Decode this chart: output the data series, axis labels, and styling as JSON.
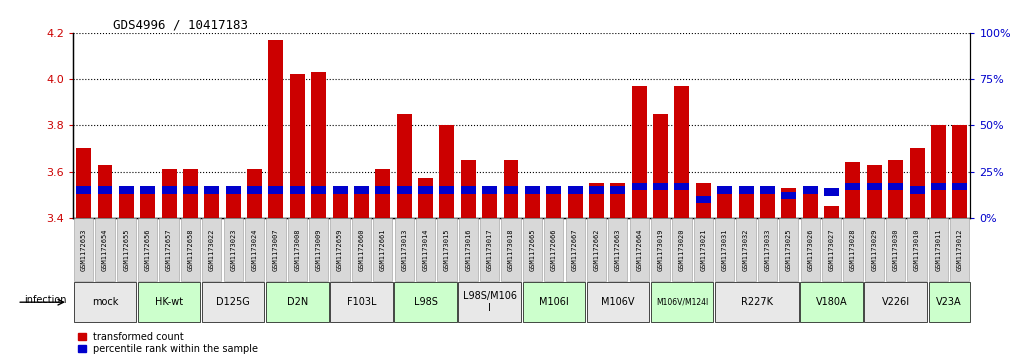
{
  "title": "GDS4996 / 10417183",
  "ylim_left": [
    3.4,
    4.2
  ],
  "ylim_right": [
    0,
    100
  ],
  "yticks_left": [
    3.4,
    3.6,
    3.8,
    4.0,
    4.2
  ],
  "yticks_right": [
    0,
    25,
    50,
    75,
    100
  ],
  "samples": [
    "GSM1172653",
    "GSM1172654",
    "GSM1172655",
    "GSM1172656",
    "GSM1172657",
    "GSM1172658",
    "GSM1173022",
    "GSM1173023",
    "GSM1173024",
    "GSM1173007",
    "GSM1173008",
    "GSM1173009",
    "GSM1172659",
    "GSM1172660",
    "GSM1172661",
    "GSM1173013",
    "GSM1173014",
    "GSM1173015",
    "GSM1173016",
    "GSM1173017",
    "GSM1173018",
    "GSM1172665",
    "GSM1172666",
    "GSM1172667",
    "GSM1172662",
    "GSM1172663",
    "GSM1172664",
    "GSM1173019",
    "GSM1173020",
    "GSM1173021",
    "GSM1173031",
    "GSM1173032",
    "GSM1173033",
    "GSM1173025",
    "GSM1173026",
    "GSM1173027",
    "GSM1173028",
    "GSM1173029",
    "GSM1173030",
    "GSM1173010",
    "GSM1173011",
    "GSM1173012"
  ],
  "transformed_counts": [
    3.7,
    3.63,
    3.53,
    3.53,
    3.61,
    3.61,
    3.53,
    3.51,
    3.61,
    4.17,
    4.02,
    4.03,
    3.53,
    3.52,
    3.61,
    3.85,
    3.57,
    3.8,
    3.65,
    3.53,
    3.65,
    3.53,
    3.53,
    3.53,
    3.55,
    3.55,
    3.97,
    3.85,
    3.97,
    3.55,
    3.51,
    3.52,
    3.53,
    3.53,
    3.52,
    3.45,
    3.64,
    3.63,
    3.65,
    3.7,
    3.8,
    3.8
  ],
  "percentile_ranks": [
    15,
    15,
    15,
    15,
    15,
    15,
    15,
    15,
    15,
    15,
    15,
    15,
    15,
    15,
    15,
    15,
    15,
    15,
    15,
    15,
    15,
    15,
    15,
    15,
    15,
    15,
    17,
    17,
    17,
    10,
    15,
    15,
    15,
    12,
    15,
    14,
    17,
    17,
    17,
    15,
    17,
    17
  ],
  "groups": [
    {
      "label": "mock",
      "start": 0,
      "end": 2,
      "color": "#e8e8e8"
    },
    {
      "label": "HK-wt",
      "start": 3,
      "end": 5,
      "color": "#ccffcc"
    },
    {
      "label": "D125G",
      "start": 6,
      "end": 8,
      "color": "#e8e8e8"
    },
    {
      "label": "D2N",
      "start": 9,
      "end": 11,
      "color": "#ccffcc"
    },
    {
      "label": "F103L",
      "start": 12,
      "end": 14,
      "color": "#e8e8e8"
    },
    {
      "label": "L98S",
      "start": 15,
      "end": 17,
      "color": "#ccffcc"
    },
    {
      "label": "L98S/M106\nI",
      "start": 18,
      "end": 20,
      "color": "#e8e8e8"
    },
    {
      "label": "M106I",
      "start": 21,
      "end": 23,
      "color": "#ccffcc"
    },
    {
      "label": "M106V",
      "start": 24,
      "end": 26,
      "color": "#e8e8e8"
    },
    {
      "label": "M106V/M124I",
      "start": 27,
      "end": 29,
      "color": "#ccffcc"
    },
    {
      "label": "R227K",
      "start": 30,
      "end": 33,
      "color": "#e8e8e8"
    },
    {
      "label": "V180A",
      "start": 34,
      "end": 36,
      "color": "#ccffcc"
    },
    {
      "label": "V226I",
      "start": 37,
      "end": 39,
      "color": "#e8e8e8"
    },
    {
      "label": "V23A",
      "start": 40,
      "end": 41,
      "color": "#ccffcc"
    }
  ],
  "bar_color": "#cc0000",
  "percentile_color": "#0000cc",
  "background_color": "#ffffff",
  "tick_color_left": "#cc0000",
  "tick_color_right": "#0000cc",
  "facecolor_chart": "#ffffff"
}
